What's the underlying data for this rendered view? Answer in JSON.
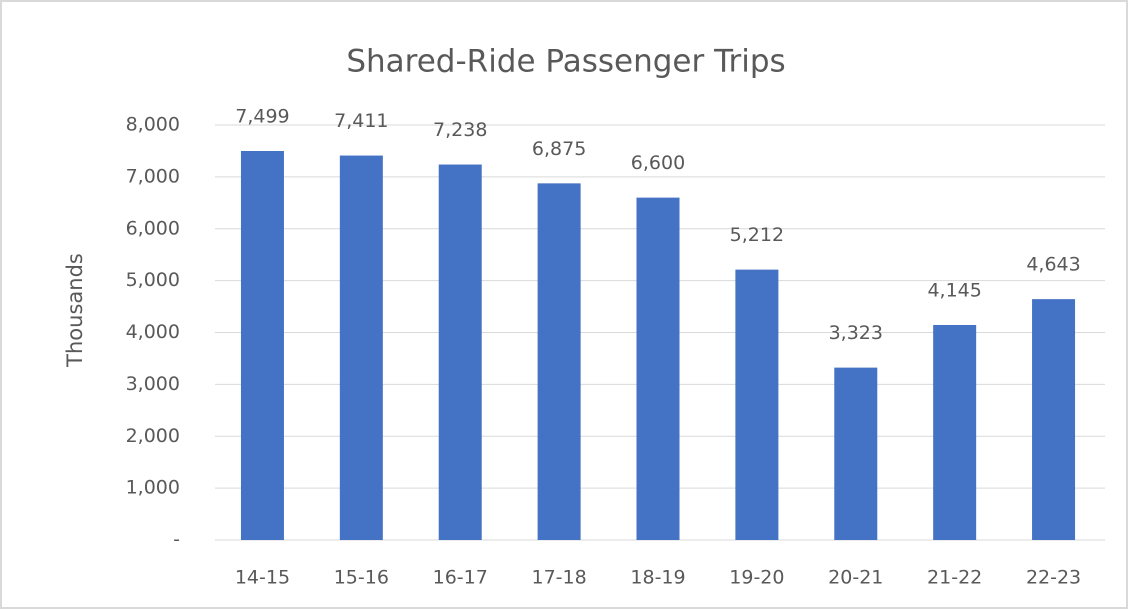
{
  "chart_data": {
    "type": "bar",
    "title": "Shared-Ride Passenger Trips",
    "y_label": "Thousands",
    "categories": [
      "14-15",
      "15-16",
      "16-17",
      "17-18",
      "18-19",
      "19-20",
      "20-21",
      "21-22",
      "22-23"
    ],
    "values": [
      7499,
      7411,
      7238,
      6875,
      6600,
      5212,
      3323,
      4145,
      4643
    ],
    "value_labels": [
      "7,499",
      "7,411",
      "7,238",
      "6,875",
      "6,600",
      "5,212",
      "3,323",
      "4,145",
      "4,643"
    ],
    "color": "#4472c4",
    "ylim": [
      0,
      8000
    ],
    "yticks": [
      {
        "value": 0,
        "label": "-"
      },
      {
        "value": 1000,
        "label": "1,000"
      },
      {
        "value": 2000,
        "label": "2,000"
      },
      {
        "value": 3000,
        "label": "3,000"
      },
      {
        "value": 4000,
        "label": "4,000"
      },
      {
        "value": 5000,
        "label": "5,000"
      },
      {
        "value": 6000,
        "label": "6,000"
      },
      {
        "value": 7000,
        "label": "7,000"
      },
      {
        "value": 8000,
        "label": "8,000"
      }
    ],
    "grid": true
  }
}
